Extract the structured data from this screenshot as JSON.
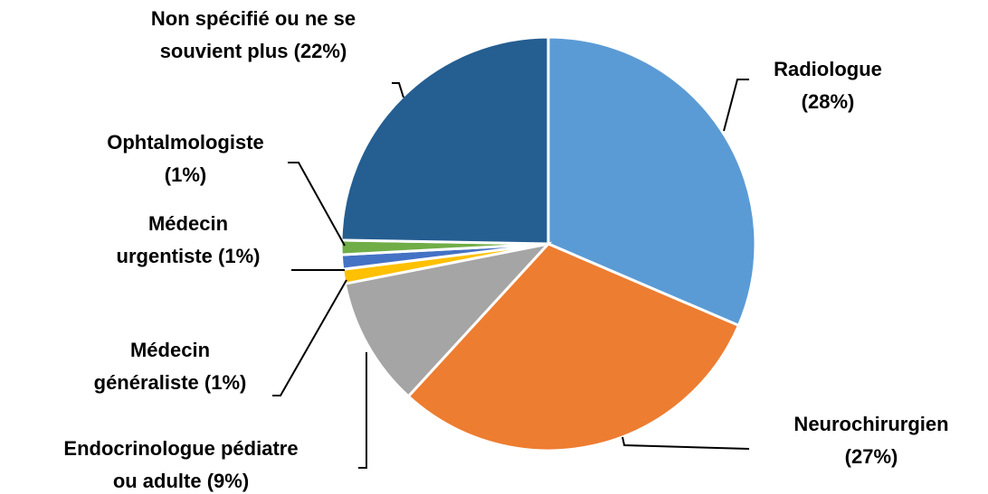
{
  "chart_data": {
    "type": "pie",
    "categories": [
      "Radiologue",
      "Neurochirurgien",
      "Endocrinologue pédiatre ou adulte",
      "Médecin généraliste",
      "Médecin urgentiste",
      "Ophtalmologiste",
      "Non spécifié ou ne se souvient plus"
    ],
    "values": [
      28,
      27,
      9,
      1,
      1,
      1,
      22
    ],
    "value_labels": [
      "(28%)",
      "(27%)",
      "(9%)",
      "(1%)",
      "(1%)",
      "(1%)",
      "(22%)"
    ],
    "colors": [
      "#5b9bd5",
      "#ed7d31",
      "#a5a5a5",
      "#ffc000",
      "#4472c4",
      "#70ad47",
      "#255e91"
    ]
  }
}
